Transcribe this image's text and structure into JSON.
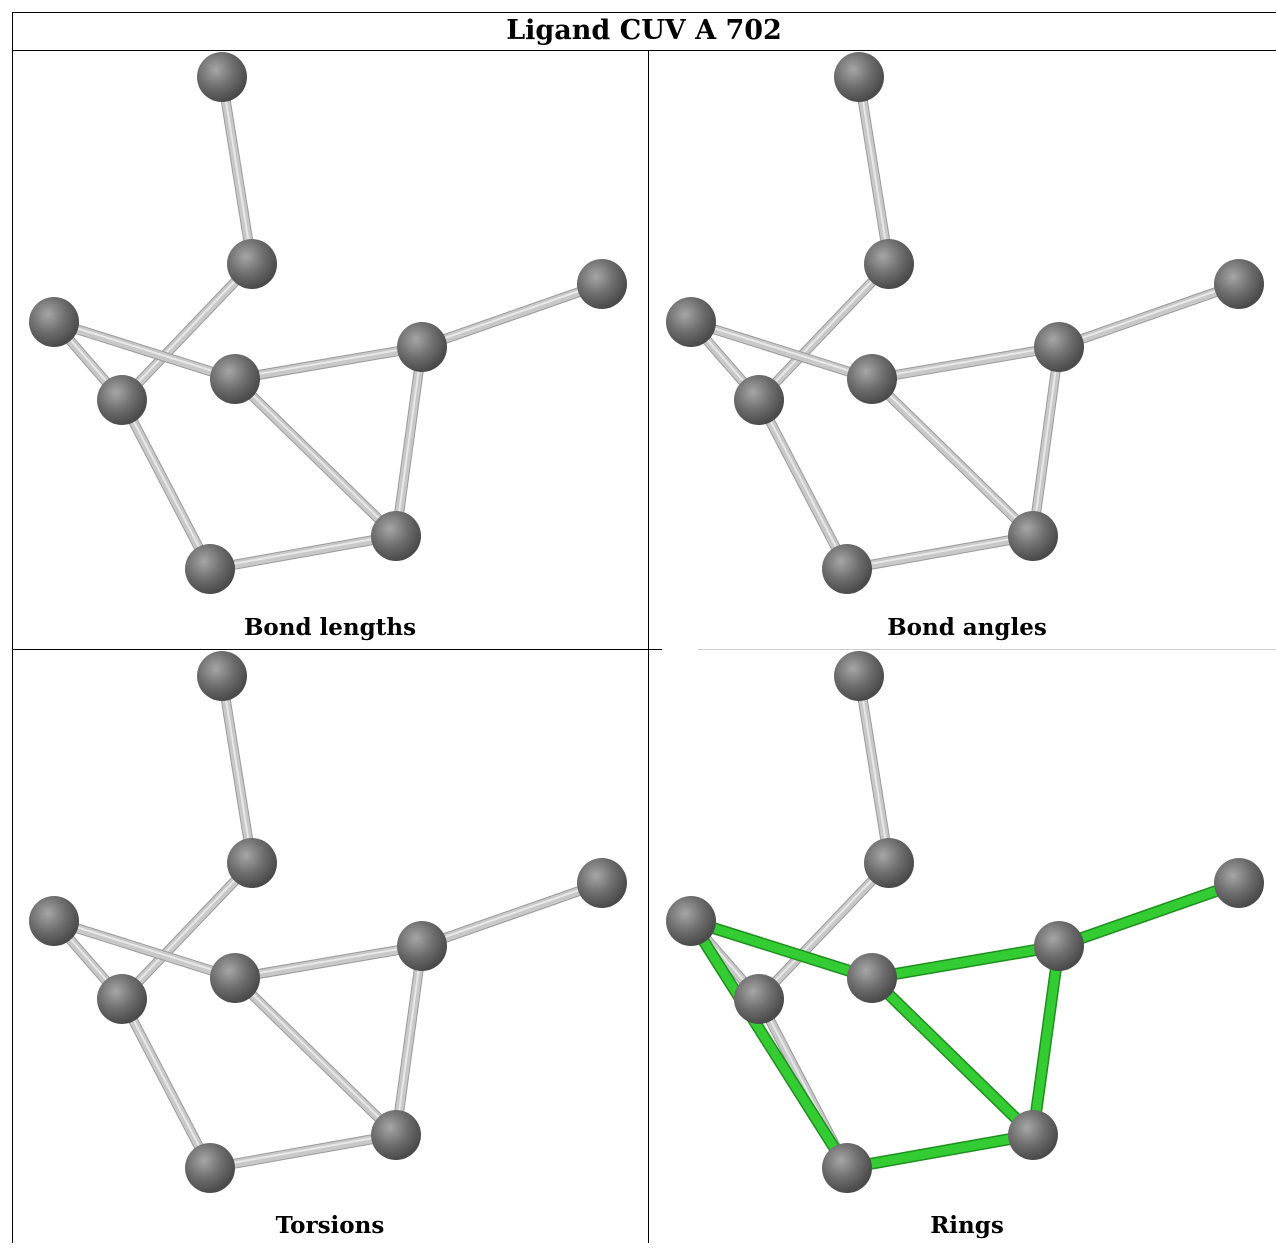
{
  "title": "Ligand CUV A 702",
  "panels": [
    {
      "caption": "Bond lengths",
      "highlight": false
    },
    {
      "caption": "Bond angles",
      "highlight": false
    },
    {
      "caption": "Torsions",
      "highlight": false
    },
    {
      "caption": "Rings",
      "highlight": true
    }
  ],
  "colors": {
    "atom": "#6e6e6e",
    "bond": "#c8c8c8",
    "ring_bond": "#33cc33"
  }
}
